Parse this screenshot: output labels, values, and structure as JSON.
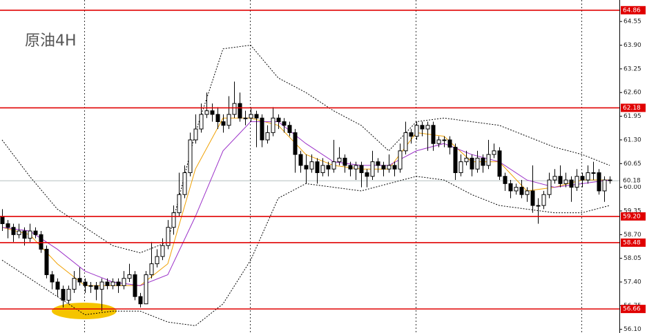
{
  "chart_data": {
    "type": "candlestick",
    "title": "原油4H",
    "open": [
      59.2,
      59.0,
      58.9,
      58.7,
      58.8,
      58.6,
      58.8,
      58.7,
      58.3,
      57.6,
      57.4,
      57.2,
      56.9,
      57.2,
      57.5,
      57.4,
      57.3,
      57.3,
      57.2,
      57.4,
      57.3,
      57.4,
      57.3,
      57.5,
      57.6,
      57.0,
      56.8,
      57.6,
      57.9,
      58.1,
      58.4,
      58.9,
      59.3,
      59.8,
      60.4,
      61.3,
      61.6,
      62.0,
      62.1,
      62.0,
      61.8,
      61.7,
      62.0,
      62.3,
      61.9,
      61.9,
      62.0,
      61.9,
      61.3,
      61.5,
      61.9,
      61.8,
      61.7,
      61.5,
      60.9,
      60.6,
      60.5,
      60.7,
      60.4,
      60.6,
      60.5,
      60.7,
      60.8,
      60.6,
      60.5,
      60.6,
      60.4,
      60.3,
      60.7,
      60.6,
      60.5,
      60.6,
      60.5,
      61.0,
      61.5,
      61.4,
      61.7,
      61.6,
      61.7,
      61.2,
      61.3,
      61.3,
      61.1,
      60.4,
      60.7,
      60.8,
      60.5,
      60.8,
      60.6,
      60.9,
      61.0,
      60.3,
      60.1,
      59.9,
      60.0,
      59.8,
      59.9,
      59.5,
      59.5,
      59.8,
      60.2,
      60.3,
      60.1,
      60.2,
      60.0,
      60.3,
      60.2,
      60.4,
      60.4,
      59.9,
      60.2
    ],
    "high": [
      59.4,
      59.1,
      59.0,
      59.0,
      58.9,
      59.0,
      58.9,
      58.8,
      58.4,
      57.7,
      57.5,
      57.3,
      57.3,
      57.7,
      57.8,
      57.5,
      57.4,
      57.4,
      57.5,
      57.5,
      57.5,
      57.5,
      57.7,
      57.9,
      57.7,
      57.1,
      57.7,
      58.5,
      58.3,
      58.6,
      59.1,
      59.5,
      60.4,
      60.6,
      61.5,
      62.0,
      62.3,
      62.6,
      62.3,
      62.2,
      62.0,
      62.5,
      62.9,
      62.6,
      62.1,
      62.2,
      62.1,
      62.0,
      61.7,
      62.2,
      62.0,
      61.9,
      61.8,
      61.6,
      61.0,
      60.9,
      60.9,
      60.8,
      60.8,
      60.7,
      61.3,
      61.1,
      60.9,
      60.7,
      60.7,
      60.7,
      60.5,
      61.0,
      60.8,
      60.7,
      60.9,
      60.7,
      61.2,
      61.8,
      61.6,
      61.8,
      61.8,
      61.8,
      61.8,
      61.4,
      61.4,
      61.4,
      61.2,
      60.9,
      61.0,
      60.9,
      61.0,
      60.9,
      61.3,
      61.2,
      61.1,
      60.4,
      60.2,
      60.1,
      60.2,
      60.0,
      60.6,
      59.7,
      59.9,
      60.4,
      60.5,
      60.6,
      60.4,
      60.3,
      60.5,
      60.4,
      60.6,
      60.7,
      60.5,
      60.3,
      60.3
    ],
    "low": [
      58.8,
      58.6,
      58.5,
      58.6,
      58.4,
      58.5,
      58.6,
      58.2,
      57.5,
      57.2,
      57.0,
      56.7,
      56.8,
      57.1,
      57.3,
      57.1,
      57.1,
      56.9,
      56.6,
      57.2,
      57.2,
      57.1,
      57.2,
      57.4,
      56.9,
      56.7,
      56.8,
      57.5,
      57.8,
      58.0,
      58.3,
      58.7,
      59.2,
      59.7,
      60.3,
      61.2,
      61.5,
      61.9,
      61.8,
      61.6,
      61.5,
      61.6,
      61.9,
      61.8,
      61.7,
      61.8,
      61.1,
      61.1,
      61.2,
      61.4,
      61.6,
      61.5,
      61.4,
      60.4,
      60.4,
      60.1,
      60.4,
      60.1,
      60.3,
      60.3,
      60.4,
      60.6,
      60.4,
      60.3,
      60.2,
      60.0,
      60.0,
      60.2,
      60.4,
      60.3,
      60.4,
      60.3,
      60.4,
      60.9,
      61.2,
      61.3,
      61.4,
      61.0,
      61.0,
      61.1,
      61.1,
      60.9,
      60.2,
      60.3,
      60.6,
      60.3,
      60.4,
      60.4,
      60.5,
      60.8,
      60.2,
      59.9,
      59.7,
      59.8,
      59.7,
      59.6,
      59.3,
      59.0,
      59.4,
      59.7,
      60.1,
      60.0,
      60.0,
      59.6,
      59.9,
      60.0,
      60.1,
      60.2,
      59.8,
      59.6,
      60.1
    ],
    "close": [
      59.0,
      58.9,
      58.7,
      58.8,
      58.6,
      58.8,
      58.7,
      58.3,
      57.6,
      57.4,
      57.2,
      56.9,
      57.2,
      57.5,
      57.4,
      57.3,
      57.3,
      57.2,
      57.4,
      57.3,
      57.4,
      57.3,
      57.5,
      57.6,
      57.0,
      56.8,
      57.6,
      57.9,
      58.1,
      58.4,
      58.9,
      59.3,
      59.8,
      60.4,
      61.3,
      61.6,
      62.0,
      62.1,
      62.0,
      61.8,
      61.7,
      62.0,
      62.3,
      61.9,
      61.9,
      62.0,
      61.9,
      61.3,
      61.5,
      61.9,
      61.8,
      61.7,
      61.5,
      60.9,
      60.6,
      60.5,
      60.7,
      60.4,
      60.6,
      60.5,
      60.7,
      60.8,
      60.6,
      60.5,
      60.6,
      60.4,
      60.3,
      60.7,
      60.6,
      60.5,
      60.6,
      60.5,
      61.0,
      61.5,
      61.4,
      61.7,
      61.6,
      61.7,
      61.2,
      61.3,
      61.3,
      61.1,
      60.4,
      60.7,
      60.8,
      60.5,
      60.8,
      60.6,
      60.9,
      61.0,
      60.3,
      60.1,
      59.9,
      60.0,
      59.8,
      59.9,
      59.5,
      59.5,
      59.8,
      60.2,
      60.3,
      60.1,
      60.2,
      60.0,
      60.3,
      60.2,
      60.4,
      60.4,
      59.9,
      60.2,
      60.2
    ],
    "indicator_x": [
      0,
      5,
      10,
      15,
      20,
      25,
      30,
      35,
      40,
      45,
      50,
      55,
      60,
      65,
      70,
      75,
      80,
      85,
      90,
      95,
      100,
      105,
      110
    ],
    "indicators": [
      {
        "color": "#000000",
        "style": "dashed",
        "values": [
          61.3,
          60.3,
          59.4,
          58.9,
          58.4,
          58.2,
          58.5,
          61.5,
          63.8,
          63.9,
          63.0,
          62.6,
          62.1,
          61.7,
          61.0,
          61.8,
          61.9,
          61.8,
          61.7,
          61.4,
          61.1,
          60.9,
          60.6
        ]
      },
      {
        "color": "#000000",
        "style": "dashed",
        "values": [
          58.0,
          57.5,
          57.0,
          56.5,
          56.6,
          56.6,
          56.3,
          56.2,
          56.8,
          58.0,
          59.7,
          60.1,
          60.0,
          59.9,
          60.1,
          60.3,
          60.2,
          59.8,
          59.5,
          59.4,
          59.3,
          59.3,
          59.5
        ]
      },
      {
        "color": "#f0a000",
        "style": "solid",
        "values": [
          58.9,
          58.7,
          57.9,
          57.3,
          57.3,
          57.3,
          57.9,
          60.5,
          61.9,
          61.9,
          61.7,
          60.9,
          60.6,
          60.5,
          60.5,
          61.5,
          61.4,
          60.7,
          60.7,
          59.9,
          60.0,
          60.2,
          60.2
        ]
      },
      {
        "color": "#9b30c8",
        "style": "solid",
        "values": [
          58.9,
          58.8,
          58.3,
          57.7,
          57.4,
          57.3,
          57.6,
          59.2,
          61.0,
          61.8,
          61.8,
          61.2,
          60.7,
          60.6,
          60.6,
          61.0,
          61.2,
          60.9,
          60.7,
          60.2,
          60.0,
          60.1,
          60.2
        ]
      }
    ],
    "levels": [
      64.86,
      62.18,
      {
        "value": 59.2,
        "label": "59.20"
      },
      58.48,
      56.66
    ],
    "level_color": "#e00000",
    "last_price": 60.18,
    "ylim": [
      56.0,
      65.14
    ],
    "yticks": [
      64.55,
      {
        "value": 63.9,
        "label": "63.90"
      },
      63.25,
      {
        "value": 62.6,
        "label": "62.60"
      },
      61.95,
      {
        "value": 61.3,
        "label": "61.30"
      },
      60.65,
      {
        "value": 60.0,
        "label": "60.00"
      },
      59.35,
      {
        "value": 58.7,
        "label": "58.70"
      },
      58.05,
      {
        "value": 57.4,
        "label": "57.40"
      },
      56.75,
      {
        "value": 56.1,
        "label": "56.10"
      }
    ]
  }
}
